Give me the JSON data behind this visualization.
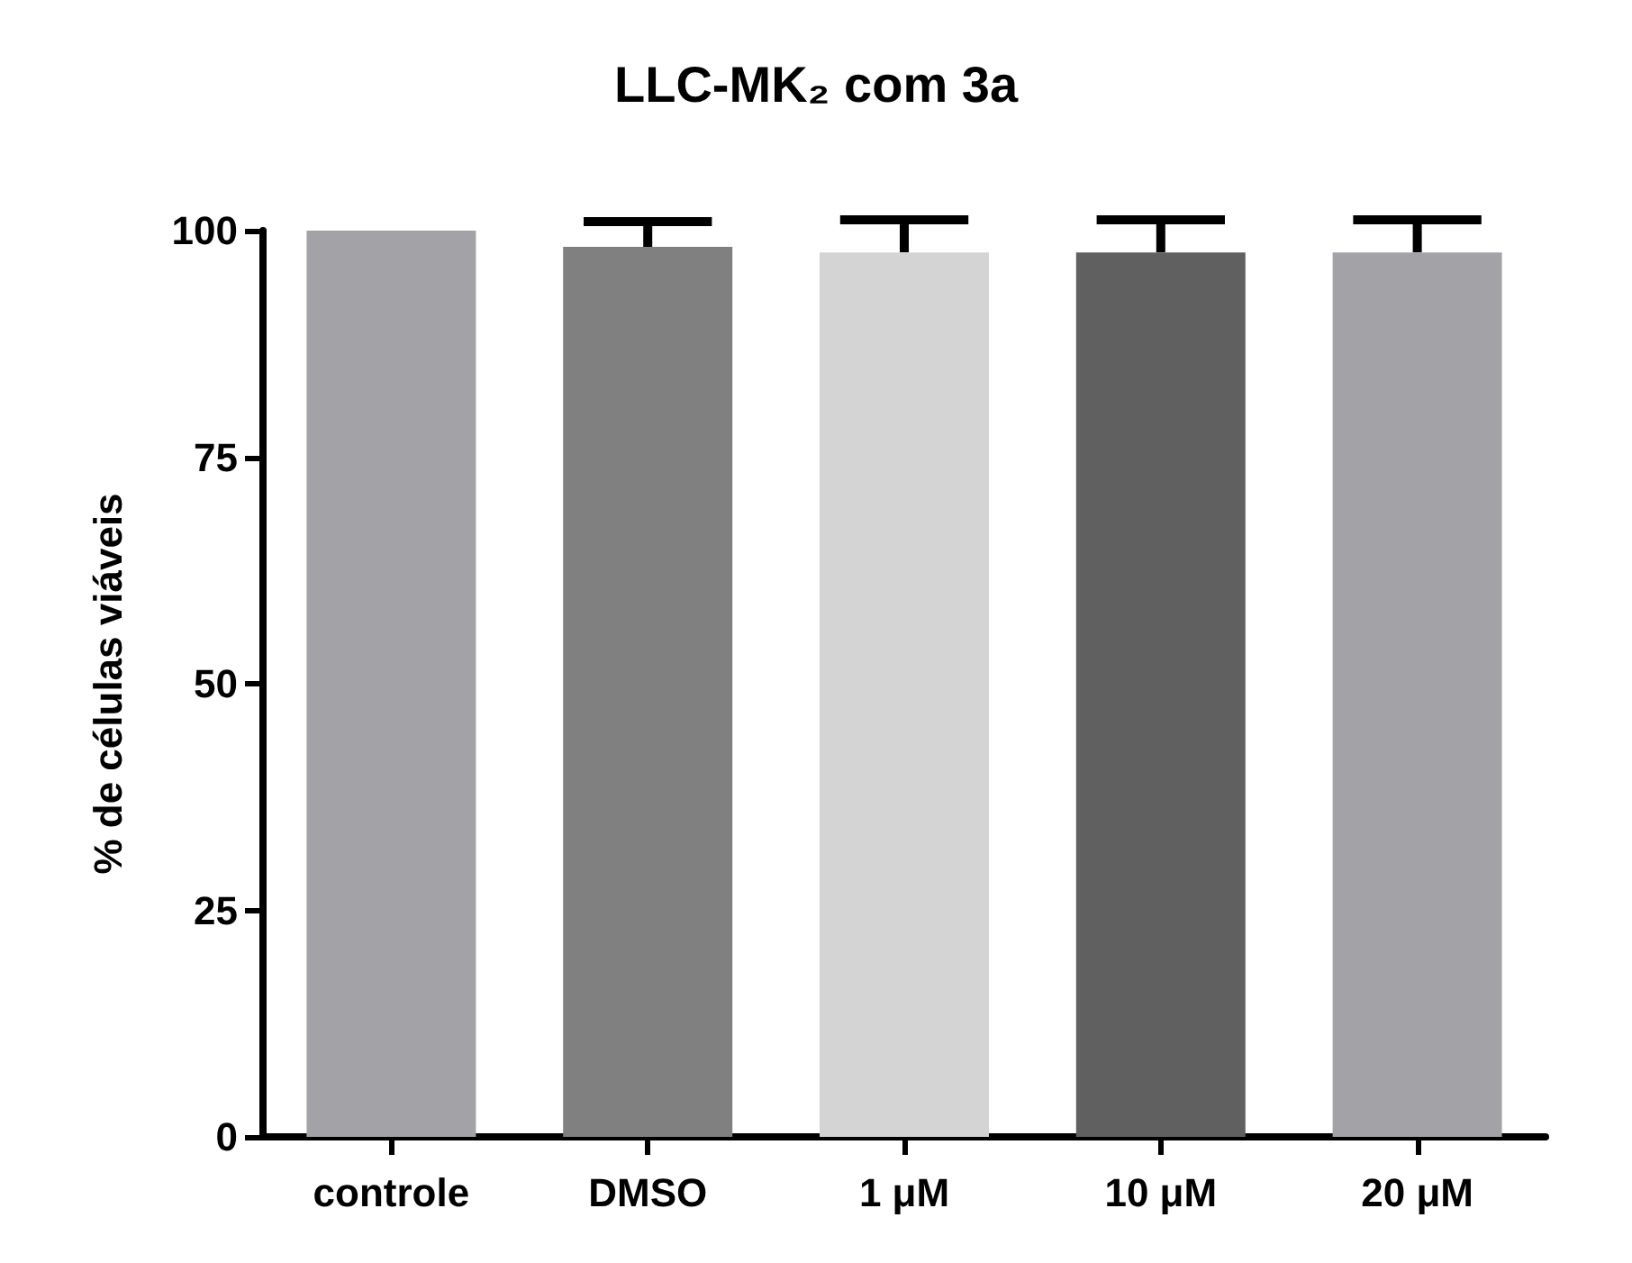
{
  "chart_data": {
    "type": "bar",
    "title": "LLC-MK₂ com 3a",
    "ylabel": "% de células viáveis",
    "categories": [
      "controle",
      "DMSO",
      "1 μM",
      "10 μM",
      "20 μM"
    ],
    "values": [
      100,
      98.2,
      97.6,
      97.6,
      97.6
    ],
    "colors": [
      "#a3a2a7",
      "#808080",
      "#d4d4d4",
      "#606060",
      "#a3a2a7"
    ],
    "errors": [
      null,
      2.8,
      3.6,
      3.6,
      3.6
    ],
    "ylim": [
      0,
      100
    ],
    "yticks": [
      0,
      25,
      50,
      75,
      100
    ],
    "grid": false
  }
}
